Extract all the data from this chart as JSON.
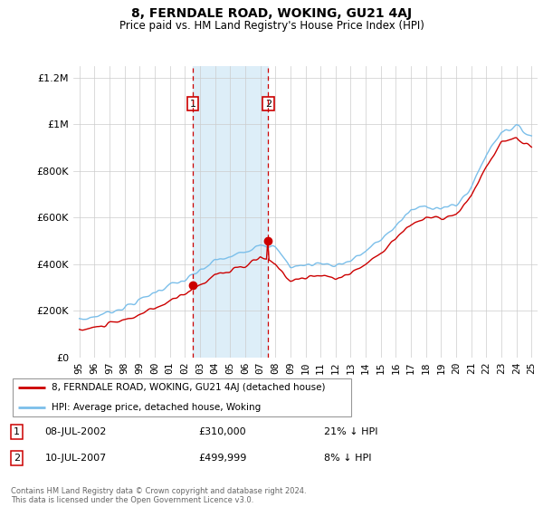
{
  "title": "8, FERNDALE ROAD, WOKING, GU21 4AJ",
  "subtitle": "Price paid vs. HM Land Registry's House Price Index (HPI)",
  "legend_line1": "8, FERNDALE ROAD, WOKING, GU21 4AJ (detached house)",
  "legend_line2": "HPI: Average price, detached house, Woking",
  "footnote": "Contains HM Land Registry data © Crown copyright and database right 2024.\nThis data is licensed under the Open Government Licence v3.0.",
  "sale1_date": "08-JUL-2002",
  "sale1_price": "£310,000",
  "sale1_hpi": "21% ↓ HPI",
  "sale1_x": 2002.52,
  "sale2_date": "10-JUL-2007",
  "sale2_price": "£499,999",
  "sale2_hpi": "8% ↓ HPI",
  "sale2_x": 2007.52,
  "sale1_y": 310000,
  "sale2_y": 499999,
  "hpi_color": "#7bbfea",
  "sale_color": "#cc0000",
  "shade_color": "#ddeef8",
  "ylim": [
    0,
    1250000
  ],
  "yticks": [
    0,
    200000,
    400000,
    600000,
    800000,
    1000000,
    1200000
  ],
  "xlim_min": 1994.6,
  "xlim_max": 2025.4
}
